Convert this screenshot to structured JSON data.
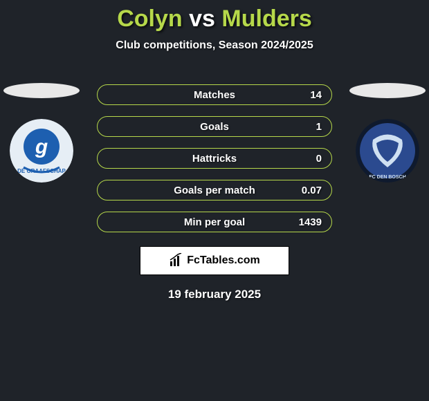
{
  "title": {
    "player1": "Colyn",
    "vs": "vs",
    "player2": "Mulders",
    "player1_color": "#b6d84a",
    "vs_color": "#ffffff",
    "player2_color": "#b6d84a"
  },
  "subtitle": "Club competitions, Season 2024/2025",
  "stats": [
    {
      "label": "Matches",
      "value": "14",
      "border": "#b6d84a",
      "fill": "#1f2329"
    },
    {
      "label": "Goals",
      "value": "1",
      "border": "#b6d84a",
      "fill": "#1f2329"
    },
    {
      "label": "Hattricks",
      "value": "0",
      "border": "#b6d84a",
      "fill": "#1f2329"
    },
    {
      "label": "Goals per match",
      "value": "0.07",
      "border": "#b6d84a",
      "fill": "#1f2329"
    },
    {
      "label": "Min per goal",
      "value": "1439",
      "border": "#b6d84a",
      "fill": "#1f2329"
    }
  ],
  "clubs": {
    "left": {
      "name": "De Graafschap",
      "bg": "#e6eef5",
      "fg": "#1d5fb0",
      "short": "g"
    },
    "right": {
      "name": "FC Den Bosch",
      "bg": "#2b4a8f",
      "fg": "#cfe0f2",
      "short": "FC"
    }
  },
  "source": {
    "text": "FcTables.com"
  },
  "date": "19 february 2025",
  "colors": {
    "background": "#1f2329",
    "ellipse": "#e8e8e8",
    "text": "#ffffff"
  }
}
